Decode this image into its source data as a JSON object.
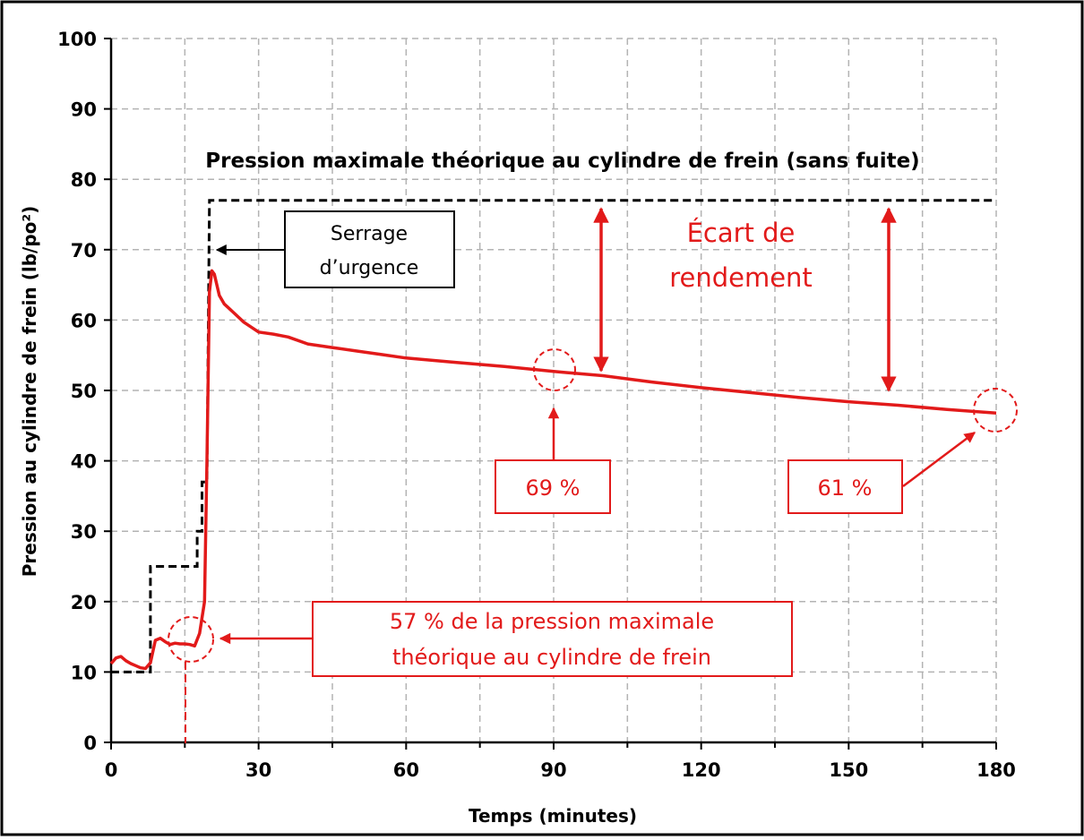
{
  "chart_data": {
    "type": "line",
    "title": "Pression maximale théorique au cylindre de frein (sans fuite)",
    "xlabel": "Temps (minutes)",
    "ylabel": "Pression au cylindre de frein (lb/po²)",
    "xlim": [
      0,
      180
    ],
    "ylim": [
      0,
      100
    ],
    "xticks": [
      0,
      30,
      60,
      90,
      120,
      150,
      180
    ],
    "yticks": [
      0,
      10,
      20,
      30,
      40,
      50,
      60,
      70,
      80,
      90,
      100
    ],
    "grid": true,
    "colors": {
      "measured": "#e21a1a",
      "theoretical": "#000000",
      "accent": "#e21a1a"
    },
    "series": [
      {
        "style": "solid",
        "color": "#e21a1a",
        "points": [
          [
            0,
            11.2
          ],
          [
            1,
            12
          ],
          [
            2,
            12.2
          ],
          [
            3,
            11.6
          ],
          [
            4,
            11.2
          ],
          [
            5,
            10.9
          ],
          [
            6,
            10.6
          ],
          [
            7,
            10.5
          ],
          [
            8,
            11.3
          ],
          [
            9,
            14.5
          ],
          [
            10,
            14.8
          ],
          [
            11,
            14.3
          ],
          [
            12,
            13.9
          ],
          [
            13,
            14.1
          ],
          [
            14,
            14
          ],
          [
            15,
            14
          ],
          [
            16,
            13.9
          ],
          [
            17,
            13.7
          ],
          [
            18,
            15.5
          ],
          [
            19,
            20
          ],
          [
            19.5,
            40
          ],
          [
            20,
            64
          ],
          [
            20.5,
            67
          ],
          [
            21,
            66.5
          ],
          [
            22,
            63.5
          ],
          [
            23,
            62.3
          ],
          [
            25,
            61
          ],
          [
            27,
            59.7
          ],
          [
            30,
            58.3
          ],
          [
            33,
            58
          ],
          [
            36,
            57.6
          ],
          [
            40,
            56.6
          ],
          [
            45,
            56.1
          ],
          [
            50,
            55.6
          ],
          [
            55,
            55.1
          ],
          [
            60,
            54.6
          ],
          [
            70,
            54
          ],
          [
            80,
            53.4
          ],
          [
            90,
            52.7
          ],
          [
            100,
            52.1
          ],
          [
            110,
            51.2
          ],
          [
            120,
            50.4
          ],
          [
            130,
            49.7
          ],
          [
            140,
            49
          ],
          [
            150,
            48.4
          ],
          [
            160,
            47.9
          ],
          [
            170,
            47.3
          ],
          [
            180,
            46.8
          ]
        ]
      },
      {
        "style": "dashed",
        "color": "#000000",
        "points": [
          [
            0,
            10
          ],
          [
            8,
            10
          ],
          [
            8,
            25
          ],
          [
            17.5,
            25
          ],
          [
            17.5,
            30
          ],
          [
            18.5,
            30
          ],
          [
            18.5,
            37
          ],
          [
            19.5,
            37
          ],
          [
            20,
            77
          ],
          [
            180,
            77
          ]
        ]
      }
    ],
    "annotations": [
      {
        "text_lines": [
          "Serrage",
          "d’urgence"
        ]
      },
      {
        "text_lines": [
          "Écart de",
          "rendement"
        ]
      },
      {
        "text": "69 %"
      },
      {
        "text": "61 %"
      },
      {
        "text_lines": [
          "57 % de la pression maximale",
          "théorique au cylindre de frein"
        ]
      }
    ]
  }
}
